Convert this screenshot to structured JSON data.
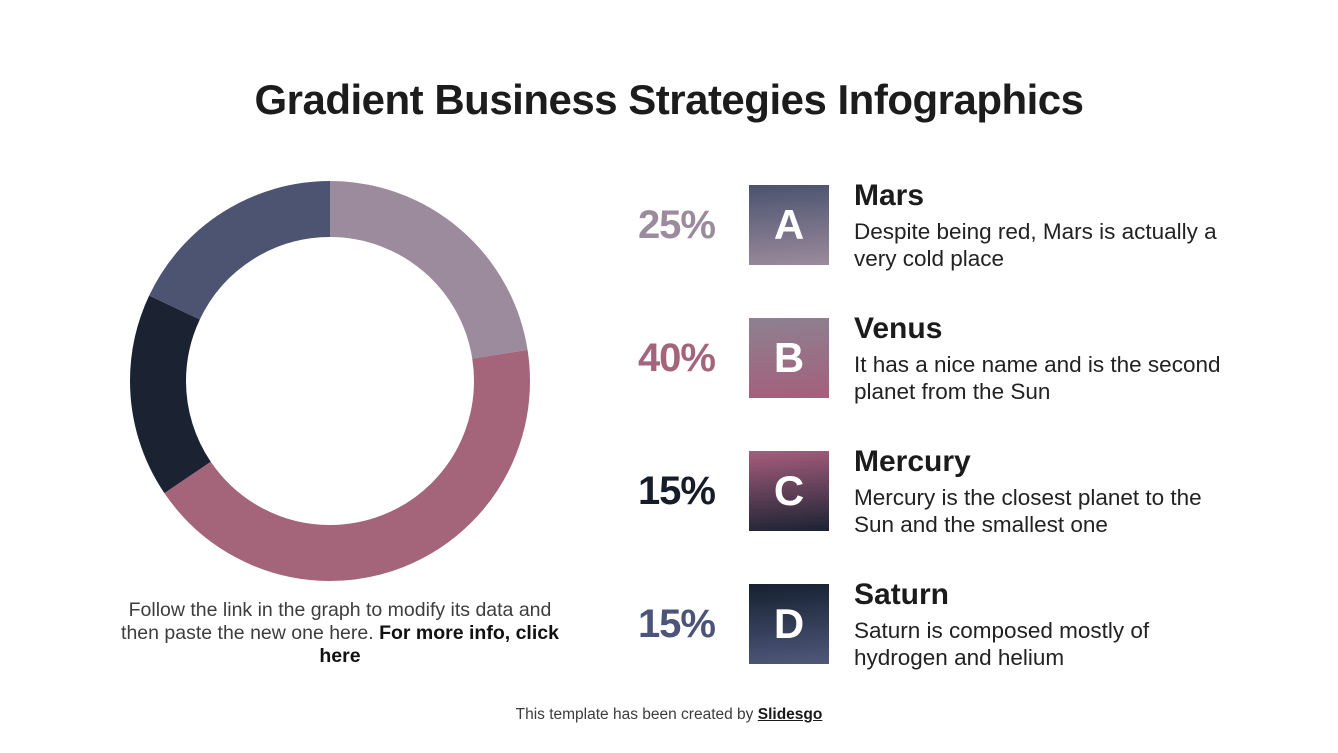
{
  "page": {
    "title": "Gradient Business Strategies Infographics"
  },
  "chart_data": {
    "type": "pie",
    "subtype": "donut",
    "title": "",
    "categories": [
      "Mars",
      "Venus",
      "Mercury",
      "Saturn"
    ],
    "values": [
      25,
      40,
      15,
      15
    ],
    "unit": "%",
    "colors": [
      "#9b8b9c",
      "#a4647a",
      "#1b2333",
      "#4c5472"
    ],
    "drawn_fractions": [
      0.225,
      0.43,
      0.165,
      0.18
    ],
    "start_angle_deg": 0,
    "direction": "clockwise",
    "inner_radius_ratio": 0.72,
    "legend_position": "right"
  },
  "chart_caption": {
    "normal": "Follow the link in the graph to modify its data and then paste the new one here. ",
    "bold": "For more info, click here"
  },
  "legend": {
    "items": [
      {
        "percent": "25%",
        "percent_color": "#9b8b9c",
        "letter": "A",
        "badge_from": "#4a526f",
        "badge_to": "#9b8b9c",
        "title": "Mars",
        "description": "Despite being red, Mars is actually a very cold place"
      },
      {
        "percent": "40%",
        "percent_color": "#a4647a",
        "letter": "B",
        "badge_from": "#8d8191",
        "badge_to": "#a45f7b",
        "title": "Venus",
        "description": "It has a nice name and is the second planet from the Sun"
      },
      {
        "percent": "15%",
        "percent_color": "#161c28",
        "letter": "C",
        "badge_from": "#a75d7d",
        "badge_to": "#1b2333",
        "title": "Mercury",
        "description": "Mercury is the closest planet to the Sun and the smallest one"
      },
      {
        "percent": "15%",
        "percent_color": "#4c5578",
        "letter": "D",
        "badge_from": "#162031",
        "badge_to": "#4f587a",
        "title": "Saturn",
        "description": "Saturn is composed mostly of hydrogen and helium"
      }
    ]
  },
  "footer": {
    "normal": "This template has been created by ",
    "brand": "Slidesgo"
  }
}
